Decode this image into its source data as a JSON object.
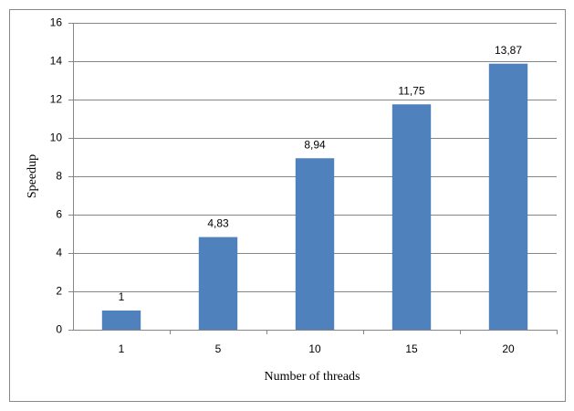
{
  "chart_data": {
    "type": "bar",
    "categories": [
      "1",
      "5",
      "10",
      "15",
      "20"
    ],
    "values": [
      1,
      4.83,
      8.94,
      11.75,
      13.87
    ],
    "value_labels": [
      "1",
      "4,83",
      "8,94",
      "11,75",
      "13,87"
    ],
    "color": "#4f81bd",
    "ylim": [
      0,
      16
    ],
    "yticks": [
      0,
      2,
      4,
      6,
      8,
      10,
      12,
      14,
      16
    ],
    "grid": true,
    "xlabel": "Number of threads",
    "ylabel": "Speedup"
  }
}
